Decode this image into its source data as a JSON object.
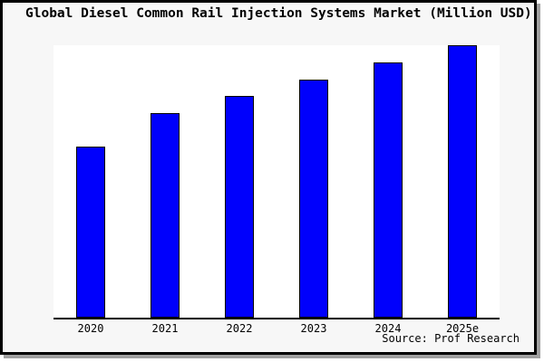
{
  "title": "Global Diesel Common Rail Injection Systems Market (Million USD)",
  "source": "Source: Prof Research",
  "colors": {
    "bar_fill": "#0000fc",
    "bar_border": "#000000",
    "chart_background": "#f7f7f7",
    "plot_background": "#ffffff",
    "axis": "#000000",
    "frame_border": "#000000",
    "frame_shadow": "#a0a0a0",
    "text": "#000000"
  },
  "chart_data": {
    "type": "bar",
    "title": "Global Diesel Common Rail Injection Systems Market (Million USD)",
    "categories": [
      "2020",
      "2021",
      "2022",
      "2023",
      "2024",
      "2025e"
    ],
    "values": [
      62.8,
      75.1,
      81.4,
      87.4,
      93.6,
      100
    ],
    "value_note": "No y-axis scale or data labels are shown in the image; values are relative bar heights indexed to 2025e = 100",
    "xlabel": "",
    "ylabel": "",
    "ylim": [
      0,
      100
    ],
    "grid": false,
    "legend": false,
    "source": "Source: Prof Research"
  }
}
